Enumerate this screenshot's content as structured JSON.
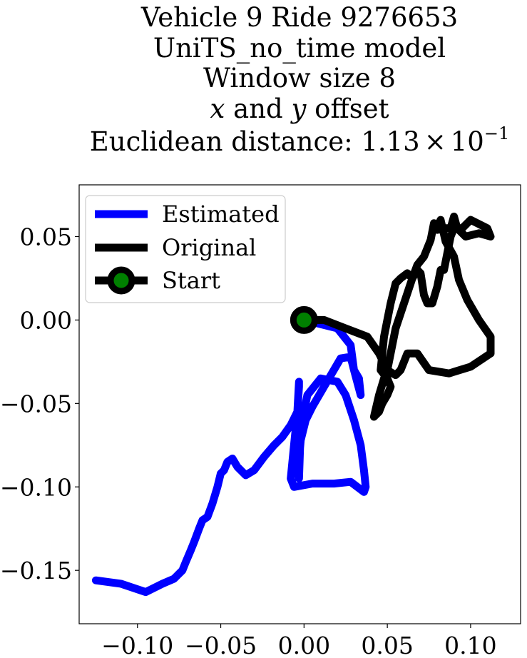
{
  "chart_data": {
    "type": "line",
    "title": {
      "lines": [
        "Vehicle 9 Ride 9276653",
        "UniTS_no_time model",
        "Window size 8",
        "x and y offset"
      ],
      "offset_line": {
        "var1": "x",
        "mid": " and ",
        "var2": "y",
        "tail": " offset"
      },
      "distance_line": {
        "prefix": "Euclidean distance: ",
        "mantissa": "1.13",
        "times": "×",
        "base": "10",
        "exponent": "−1"
      }
    },
    "xlim": [
      -0.135,
      0.13
    ],
    "ylim": [
      -0.182,
      0.081
    ],
    "xticks": [
      -0.1,
      -0.05,
      0.0,
      0.05,
      0.1
    ],
    "xtick_labels": [
      "−0.10",
      "−0.05",
      "0.00",
      "0.05",
      "0.10"
    ],
    "yticks": [
      0.05,
      0.0,
      -0.05,
      -0.1,
      -0.15
    ],
    "ytick_labels": [
      "0.05",
      "0.00",
      "−0.05",
      "−0.10",
      "−0.15"
    ],
    "grid": false,
    "legend_position": "upper-left",
    "legend": [
      "Estimated",
      "Original",
      "Start"
    ],
    "series": [
      {
        "name": "Estimated",
        "color": "#0000ff",
        "x": [
          0.0,
          0.02,
          0.028,
          0.03,
          0.034,
          0.033,
          0.03,
          0.028,
          0.022,
          0.012,
          0.005,
          0.001,
          -0.002,
          -0.003,
          -0.004,
          -0.003,
          -0.002,
          0.002,
          0.01,
          0.02,
          0.025,
          0.03,
          0.034,
          0.036,
          0.037,
          0.036,
          0.028,
          0.018,
          0.005,
          -0.006,
          -0.008,
          -0.006,
          -0.004,
          -0.003,
          -0.003,
          -0.004,
          -0.008,
          -0.013,
          -0.018,
          -0.024,
          -0.03,
          -0.035,
          -0.04,
          -0.043,
          -0.046,
          -0.048,
          -0.05,
          -0.052,
          -0.055,
          -0.058,
          -0.061,
          -0.063,
          -0.066,
          -0.068,
          -0.071,
          -0.073,
          -0.078,
          -0.085,
          -0.095,
          -0.11,
          -0.125
        ],
        "y": [
          0.0,
          -0.005,
          -0.015,
          -0.03,
          -0.045,
          -0.035,
          -0.03,
          -0.022,
          -0.023,
          -0.04,
          -0.052,
          -0.06,
          -0.072,
          -0.084,
          -0.09,
          -0.095,
          -0.065,
          -0.045,
          -0.035,
          -0.037,
          -0.045,
          -0.06,
          -0.075,
          -0.09,
          -0.1,
          -0.103,
          -0.097,
          -0.098,
          -0.098,
          -0.1,
          -0.095,
          -0.075,
          -0.055,
          -0.04,
          -0.037,
          -0.055,
          -0.063,
          -0.07,
          -0.075,
          -0.082,
          -0.09,
          -0.093,
          -0.088,
          -0.083,
          -0.085,
          -0.09,
          -0.092,
          -0.1,
          -0.11,
          -0.118,
          -0.12,
          -0.125,
          -0.133,
          -0.138,
          -0.145,
          -0.15,
          -0.155,
          -0.158,
          -0.163,
          -0.158,
          -0.156
        ]
      },
      {
        "name": "Original",
        "color": "#000000",
        "x": [
          0.0,
          0.012,
          0.025,
          0.038,
          0.045,
          0.05,
          0.055,
          0.058,
          0.062,
          0.068,
          0.075,
          0.087,
          0.1,
          0.112,
          0.112,
          0.105,
          0.098,
          0.093,
          0.09,
          0.085,
          0.082,
          0.08,
          0.078,
          0.076,
          0.072,
          0.068,
          0.065,
          0.062,
          0.058,
          0.055,
          0.052,
          0.05,
          0.048,
          0.047,
          0.046,
          0.05,
          0.052,
          0.05,
          0.047,
          0.045,
          0.042,
          0.045,
          0.048,
          0.05,
          0.052,
          0.055,
          0.06,
          0.065,
          0.068,
          0.07,
          0.072,
          0.074,
          0.077,
          0.08,
          0.082,
          0.084,
          0.086,
          0.088,
          0.09,
          0.095,
          0.1,
          0.11,
          0.112,
          0.105,
          0.097,
          0.092,
          0.09,
          0.088,
          0.085,
          0.08
        ],
        "y": [
          0.0,
          0.0,
          -0.005,
          -0.01,
          -0.02,
          -0.03,
          -0.033,
          -0.03,
          -0.02,
          -0.02,
          -0.03,
          -0.032,
          -0.028,
          -0.02,
          -0.01,
          0.0,
          0.012,
          0.024,
          0.038,
          0.047,
          0.06,
          0.056,
          0.058,
          0.048,
          0.038,
          0.033,
          0.025,
          0.028,
          0.025,
          0.022,
          0.01,
          0.0,
          -0.01,
          -0.02,
          -0.03,
          -0.035,
          -0.04,
          -0.045,
          -0.05,
          -0.055,
          -0.058,
          -0.045,
          -0.035,
          -0.03,
          -0.02,
          -0.005,
          0.01,
          0.025,
          0.03,
          0.028,
          0.015,
          0.01,
          0.01,
          0.02,
          0.03,
          0.03,
          0.04,
          0.05,
          0.055,
          0.055,
          0.06,
          0.055,
          0.05,
          0.052,
          0.05,
          0.055,
          0.062,
          0.055,
          0.055,
          0.054
        ]
      },
      {
        "name": "Start",
        "type": "marker",
        "color": "#000000",
        "marker_face": "#008000",
        "x": [
          0.0
        ],
        "y": [
          0.0
        ]
      }
    ]
  }
}
